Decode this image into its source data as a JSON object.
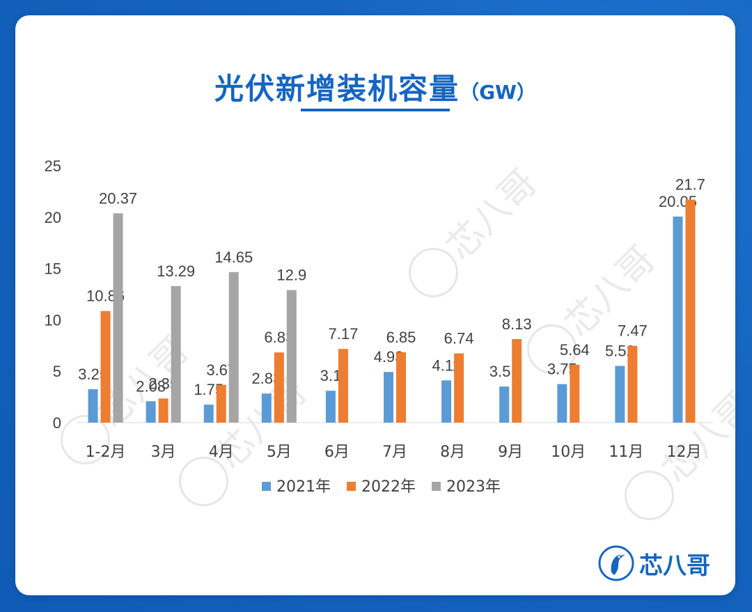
{
  "title": {
    "main": "光伏新增装机容量",
    "unit": "（GW）"
  },
  "watermark_text": "芯八哥",
  "brand": {
    "name": "芯八哥",
    "icon": "heron-logo-icon"
  },
  "colors": {
    "s2021": "#5b9bd5",
    "s2022": "#ed7d31",
    "s2023": "#a5a5a5",
    "accent": "#1565c0"
  },
  "chart_data": {
    "type": "bar",
    "title": "光伏新增装机容量（GW）",
    "categories": [
      "1-2月",
      "3月",
      "4月",
      "5月",
      "6月",
      "7月",
      "8月",
      "9月",
      "10月",
      "11月",
      "12月"
    ],
    "series": [
      {
        "name": "2021年",
        "values": [
          3.25,
          2.08,
          1.75,
          2.83,
          3.1,
          4.93,
          4.11,
          3.51,
          3.75,
          5.52,
          20.05
        ],
        "labels": [
          "3.25",
          "2.08",
          "1.75",
          "2.83",
          "3.1",
          "4.93",
          "4.11",
          "3.51",
          "3.75",
          "5.52",
          "20.05"
        ]
      },
      {
        "name": "2022年",
        "values": [
          10.86,
          2.35,
          3.67,
          6.83,
          7.17,
          6.85,
          6.74,
          8.13,
          5.64,
          7.47,
          21.7
        ],
        "labels": [
          "10.86",
          "2.35",
          "3.67",
          "6.83",
          "7.17",
          "6.85",
          "6.74",
          "8.13",
          "5.64",
          "7.47",
          "21.7"
        ]
      },
      {
        "name": "2023年",
        "values": [
          20.37,
          13.29,
          14.65,
          12.9,
          null,
          null,
          null,
          null,
          null,
          null,
          null
        ],
        "labels": [
          "20.37",
          "13.29",
          "14.65",
          "12.9",
          "",
          "",
          "",
          "",
          "",
          "",
          ""
        ]
      }
    ],
    "ylim": [
      0,
      25
    ],
    "yticks": [
      "0",
      "5",
      "10",
      "15",
      "20",
      "25"
    ],
    "xlabel": "",
    "ylabel": "",
    "grid": false,
    "legend": "bottom"
  }
}
